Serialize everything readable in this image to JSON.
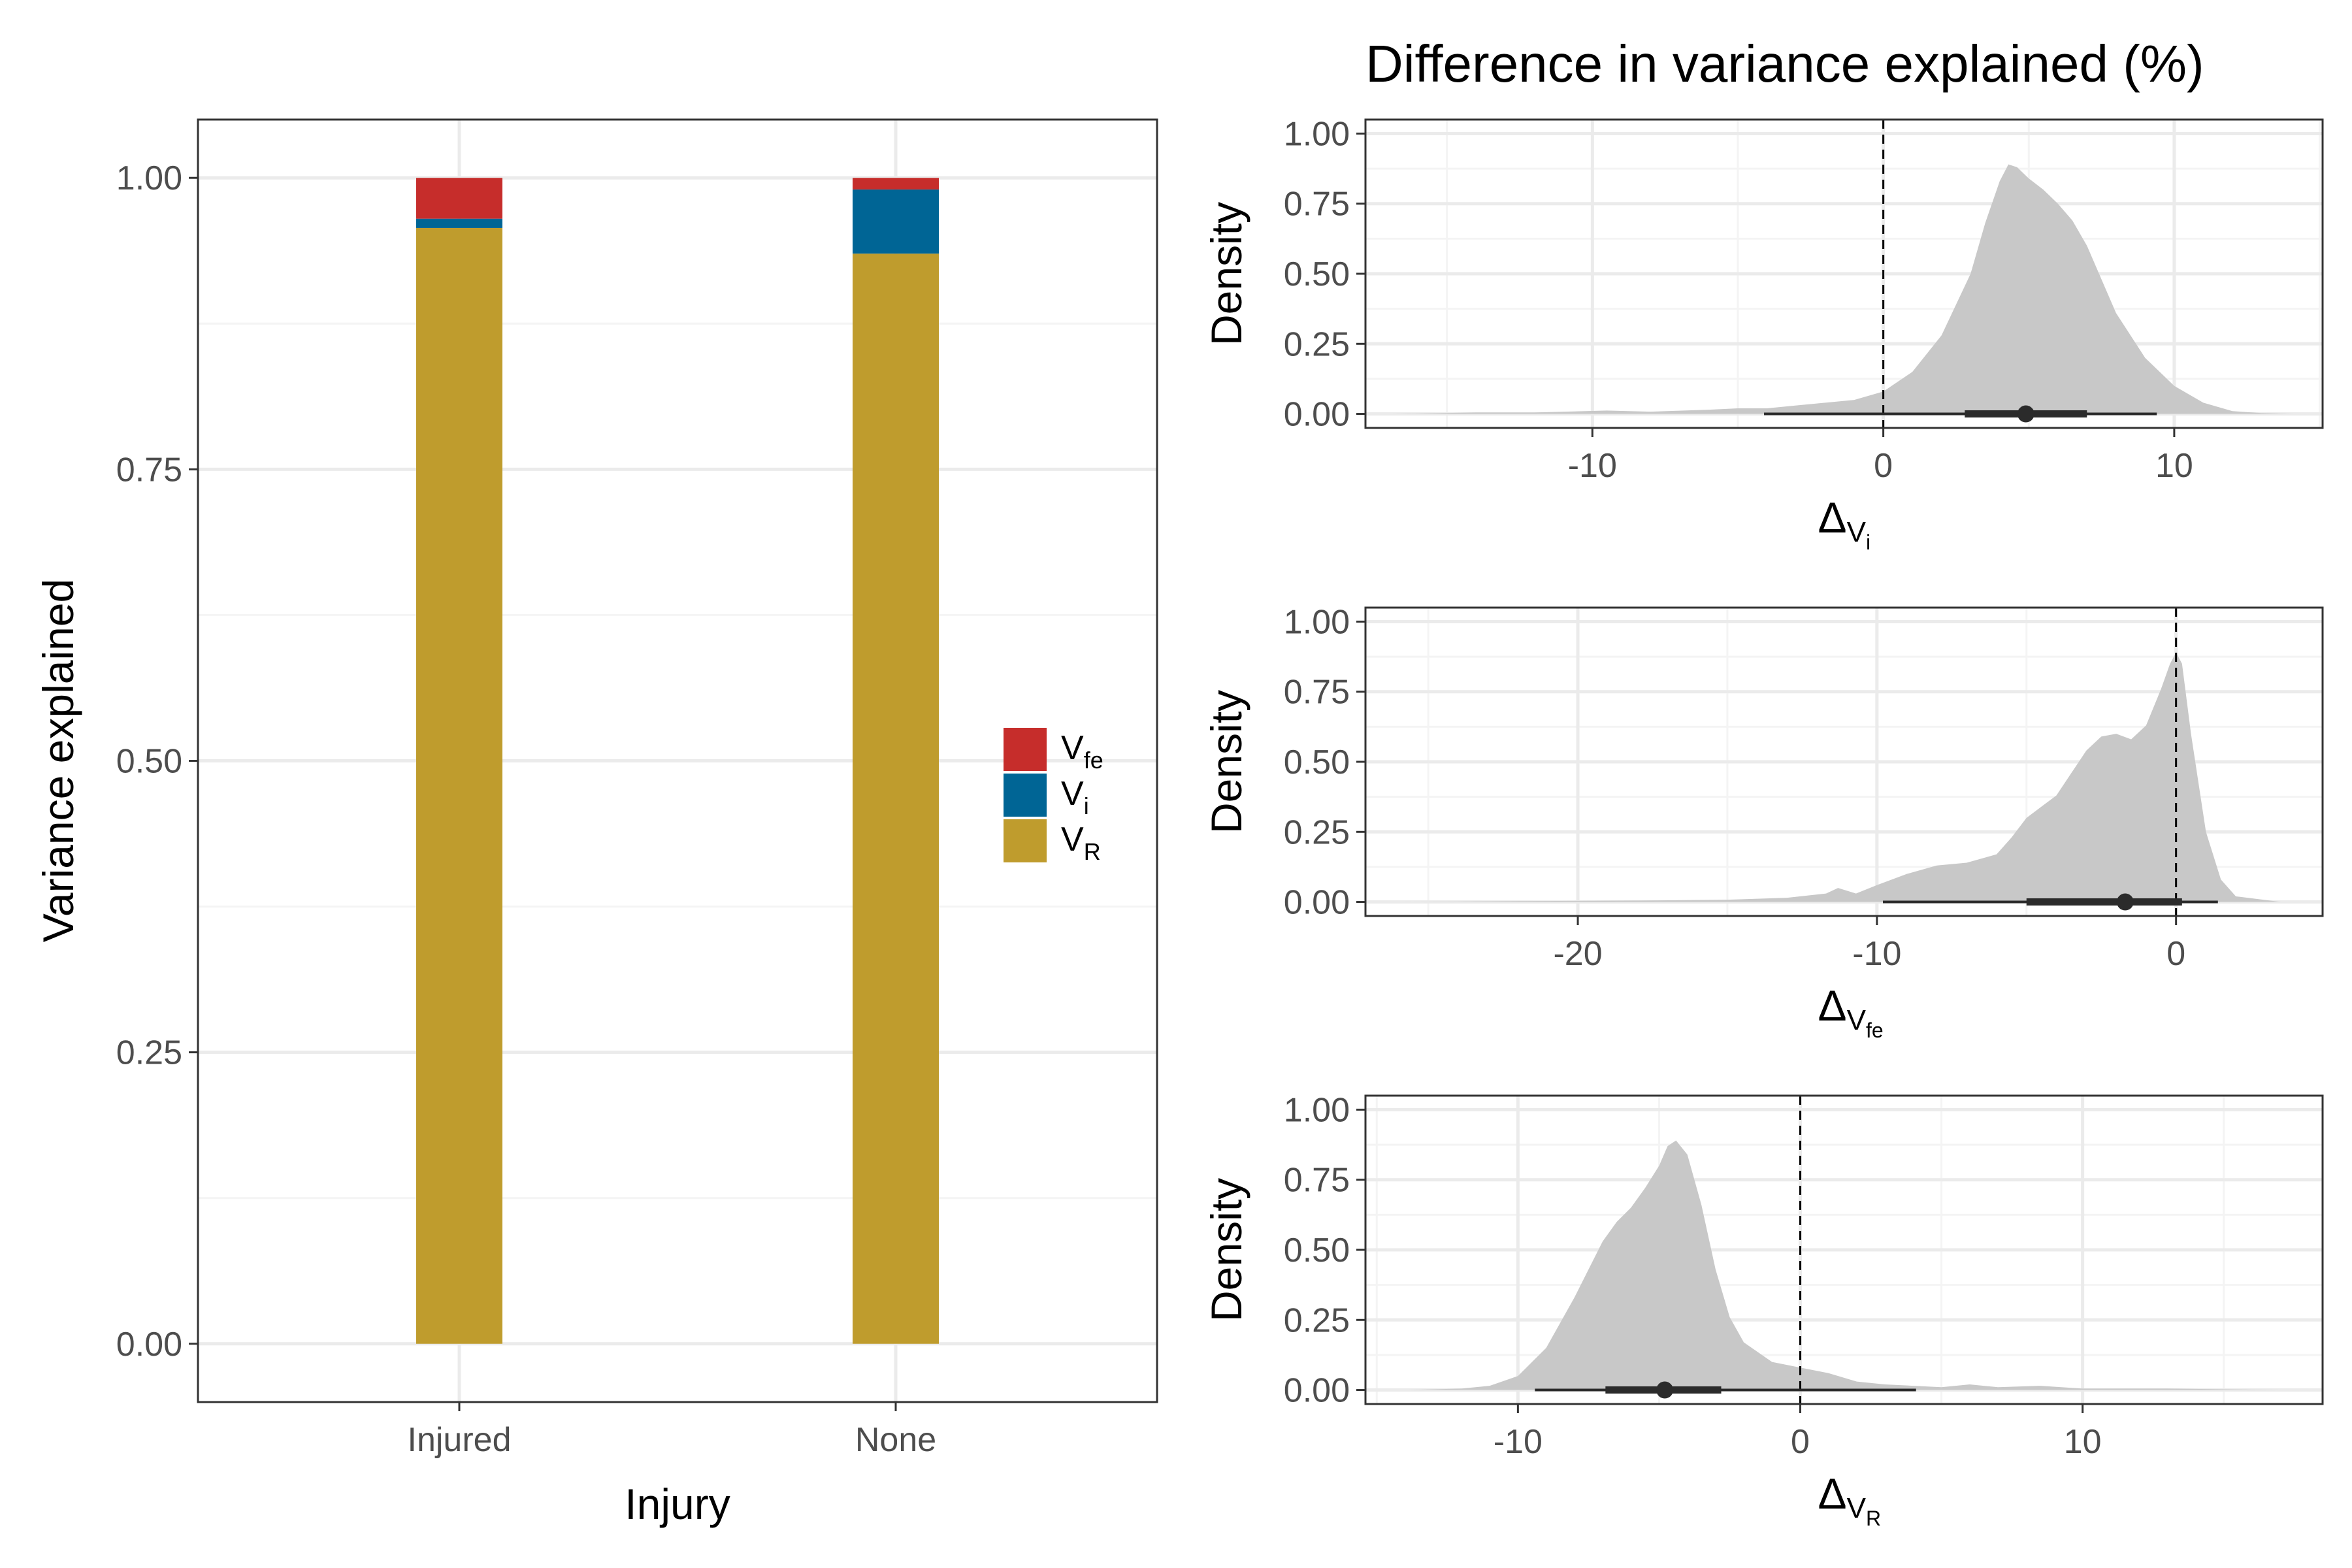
{
  "colors": {
    "V_fe": "#c62d2b",
    "V_i": "#006595",
    "V_R": "#bf9c2d",
    "density_fill": "#c8c8c8",
    "panel_border": "#333333",
    "grid_major": "#ebebeb",
    "grid_minor": "#f4f4f4"
  },
  "chart_data": [
    {
      "type": "bar",
      "stacked": true,
      "xlabel": "Injury",
      "ylabel": "Variance explained",
      "categories": [
        "Injured",
        "None"
      ],
      "ylim": [
        -0.05,
        1.05
      ],
      "yticks": [
        0.0,
        0.25,
        0.5,
        0.75,
        1.0
      ],
      "ytick_labels": [
        "0.00",
        "0.25",
        "0.50",
        "0.75",
        "1.00"
      ],
      "series": [
        {
          "key": "V_R",
          "values": [
            0.957,
            0.935
          ]
        },
        {
          "key": "V_i",
          "values": [
            0.008,
            0.055
          ]
        },
        {
          "key": "V_fe",
          "values": [
            0.035,
            0.01
          ]
        }
      ],
      "legend": {
        "position": "right",
        "items": [
          {
            "key": "V_fe",
            "base": "V",
            "sub": "fe"
          },
          {
            "key": "V_i",
            "base": "V",
            "sub": "i"
          },
          {
            "key": "V_R",
            "base": "V",
            "sub": "R"
          }
        ]
      },
      "grid": true
    },
    {
      "type": "area",
      "title": "Difference in variance explained (%)",
      "ylabel": "Density",
      "xlabel": {
        "base": "Δ",
        "sub1": "V",
        "sub2": "i"
      },
      "xlim": [
        -17.8,
        15.1
      ],
      "ylim": [
        -0.05,
        1.05
      ],
      "xticks": [
        -10,
        0,
        10
      ],
      "xtick_labels": [
        "-10",
        "0",
        "10"
      ],
      "yticks": [
        0,
        0.25,
        0.5,
        0.75,
        1.0
      ],
      "ytick_labels": [
        "0.00",
        "0.25",
        "0.50",
        "0.75",
        "1.00"
      ],
      "reference_line": 0,
      "density": {
        "x": [
          -16.9,
          -14,
          -12,
          -9.5,
          -8,
          -6,
          -5,
          -4,
          -3,
          -2,
          -1,
          0,
          1,
          2,
          3,
          3.5,
          4,
          4.3,
          4.6,
          5,
          5.5,
          6,
          6.5,
          7,
          7.5,
          8,
          9,
          10,
          11,
          12,
          13,
          14.1
        ],
        "y": [
          0,
          0.005,
          0.005,
          0.012,
          0.008,
          0.015,
          0.02,
          0.02,
          0.03,
          0.04,
          0.05,
          0.08,
          0.15,
          0.28,
          0.5,
          0.68,
          0.83,
          0.89,
          0.88,
          0.84,
          0.8,
          0.75,
          0.69,
          0.6,
          0.48,
          0.36,
          0.2,
          0.1,
          0.04,
          0.01,
          0.003,
          0
        ]
      },
      "interval": {
        "point": 4.9,
        "inner": [
          2.8,
          7.0
        ],
        "outer": [
          -4.1,
          9.4
        ]
      },
      "grid": true
    },
    {
      "type": "area",
      "ylabel": "Density",
      "xlabel": {
        "base": "Δ",
        "sub1": "V",
        "sub2": "fe"
      },
      "xlim": [
        -27.1,
        4.9
      ],
      "ylim": [
        -0.05,
        1.05
      ],
      "xticks": [
        -20,
        -10,
        0
      ],
      "xtick_labels": [
        "-20",
        "-10",
        "0"
      ],
      "yticks": [
        0,
        0.25,
        0.5,
        0.75,
        1.0
      ],
      "ytick_labels": [
        "0.00",
        "0.25",
        "0.50",
        "0.75",
        "1.00"
      ],
      "reference_line": 0,
      "density": {
        "x": [
          -25.9,
          -22,
          -18,
          -15,
          -13,
          -11.7,
          -11.3,
          -10.7,
          -10,
          -9,
          -8,
          -7,
          -6,
          -5.5,
          -5,
          -4.5,
          -4,
          -3.5,
          -3,
          -2.5,
          -2,
          -1.5,
          -1,
          -0.5,
          -0.2,
          0,
          0.2,
          0.5,
          1,
          1.5,
          2,
          3.5
        ],
        "y": [
          0,
          0.003,
          0.005,
          0.008,
          0.015,
          0.03,
          0.05,
          0.03,
          0.06,
          0.1,
          0.13,
          0.14,
          0.17,
          0.23,
          0.3,
          0.34,
          0.38,
          0.46,
          0.54,
          0.59,
          0.6,
          0.58,
          0.63,
          0.76,
          0.85,
          0.89,
          0.85,
          0.6,
          0.25,
          0.08,
          0.02,
          0
        ]
      },
      "interval": {
        "point": -1.7,
        "inner": [
          -5.0,
          0.2
        ],
        "outer": [
          -9.8,
          1.4
        ]
      },
      "grid": true
    },
    {
      "type": "area",
      "ylabel": "Density",
      "xlabel": {
        "base": "Δ",
        "sub1": "V",
        "sub2": "R"
      },
      "xlim": [
        -15.4,
        18.5
      ],
      "ylim": [
        -0.05,
        1.05
      ],
      "xticks": [
        -10,
        0,
        10
      ],
      "xtick_labels": [
        "-10",
        "0",
        "10"
      ],
      "yticks": [
        0,
        0.25,
        0.5,
        0.75,
        1.0
      ],
      "ytick_labels": [
        "0.00",
        "0.25",
        "0.50",
        "0.75",
        "1.00"
      ],
      "reference_line": 0,
      "density": {
        "x": [
          -13.9,
          -12,
          -11,
          -10,
          -9,
          -8,
          -7,
          -6.5,
          -6,
          -5.5,
          -5,
          -4.7,
          -4.4,
          -4,
          -3.5,
          -3,
          -2.5,
          -2,
          -1,
          0,
          1,
          2,
          3,
          4,
          5,
          6,
          7,
          8.5,
          10,
          13,
          17
        ],
        "y": [
          0,
          0.005,
          0.015,
          0.05,
          0.15,
          0.33,
          0.53,
          0.6,
          0.65,
          0.72,
          0.8,
          0.87,
          0.89,
          0.84,
          0.66,
          0.43,
          0.26,
          0.17,
          0.1,
          0.08,
          0.06,
          0.03,
          0.02,
          0.015,
          0.01,
          0.02,
          0.01,
          0.015,
          0.005,
          0.005,
          0
        ]
      },
      "interval": {
        "point": -4.8,
        "inner": [
          -6.9,
          -2.8
        ],
        "outer": [
          -9.4,
          4.1
        ]
      },
      "grid": true
    }
  ]
}
